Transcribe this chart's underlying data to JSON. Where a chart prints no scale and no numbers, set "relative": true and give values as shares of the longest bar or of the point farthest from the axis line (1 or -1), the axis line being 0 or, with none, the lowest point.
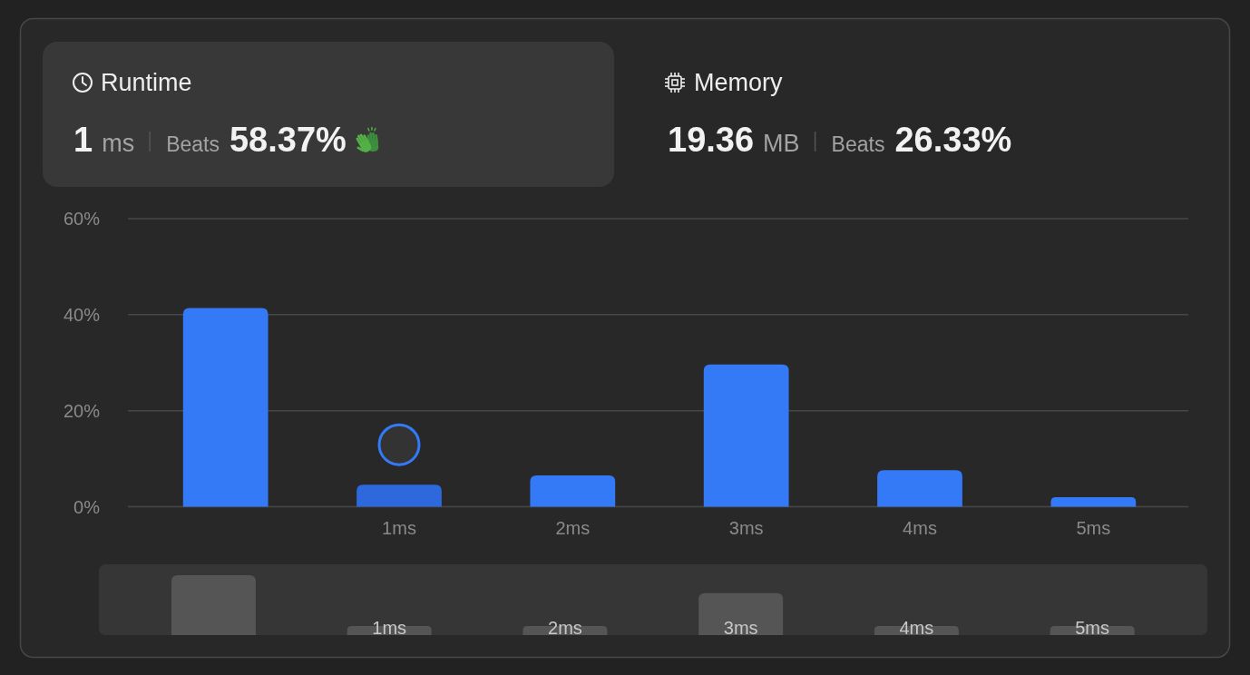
{
  "chart_data": [
    {
      "type": "other",
      "annotations": [
        "Runtime",
        "1",
        "ms",
        "Beats",
        "58.37%",
        "Memory",
        "19.36",
        "MB",
        "Beats",
        "26.33%"
      ]
    },
    {
      "type": "bar",
      "categories": [
        null,
        "1ms",
        "2ms",
        "3ms",
        "4ms",
        "5ms"
      ],
      "values": [
        41.4,
        4.6,
        6.5,
        29.6,
        7.6,
        2.0
      ],
      "colors": [
        "#3479f6",
        "#2d68dc",
        "#3479f6",
        "#3479f6",
        "#3479f6",
        "#3479f6"
      ],
      "ylim": [
        0,
        60
      ],
      "yticks": [
        {
          "value": 0,
          "label": "0%"
        },
        {
          "value": 20,
          "label": "20%"
        },
        {
          "value": 40,
          "label": "40%"
        },
        {
          "value": 60,
          "label": "60%"
        }
      ],
      "grid": "y"
    },
    {
      "type": "bar",
      "relative": true,
      "categories": [
        null,
        "1ms",
        "2ms",
        "3ms",
        "4ms",
        "5ms"
      ],
      "values": [
        1,
        0.15,
        0.15,
        0.7,
        0.15,
        0.15
      ],
      "color": "#555555"
    }
  ]
}
